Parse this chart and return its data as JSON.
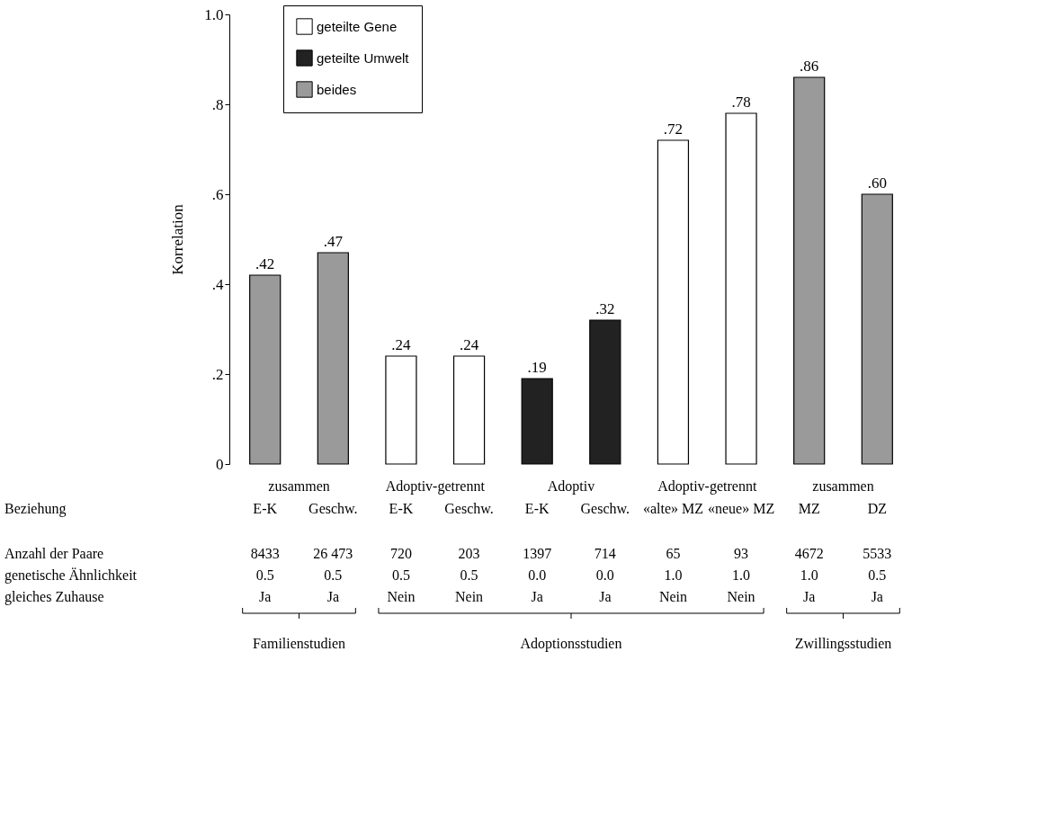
{
  "chart_data": {
    "type": "bar",
    "ylabel": "Korrelation",
    "categories": [
      "E-K",
      "Geschw.",
      "E-K",
      "Geschw.",
      "E-K",
      "Geschw.",
      "«alte» MZ",
      "«neue» MZ",
      "MZ",
      "DZ"
    ],
    "series": [
      {
        "name": "geteilte Gene",
        "color": "#ffffff",
        "values": [
          null,
          null,
          0.24,
          0.24,
          null,
          null,
          0.72,
          0.78,
          null,
          null
        ],
        "value_labels": [
          null,
          null,
          ".24",
          ".24",
          null,
          null,
          ".72",
          ".78",
          null,
          null
        ]
      },
      {
        "name": "geteilte Umwelt",
        "color": "#222222",
        "values": [
          null,
          null,
          null,
          null,
          0.19,
          0.32,
          null,
          null,
          null,
          null
        ],
        "value_labels": [
          null,
          null,
          null,
          null,
          ".19",
          ".32",
          null,
          null,
          null,
          null
        ]
      },
      {
        "name": "beides",
        "color": "#9a9a9a",
        "values": [
          0.42,
          0.47,
          null,
          null,
          null,
          null,
          null,
          null,
          0.86,
          0.6
        ],
        "value_labels": [
          ".42",
          ".47",
          null,
          null,
          null,
          null,
          null,
          null,
          ".86",
          ".60"
        ]
      }
    ],
    "ylim": [
      0,
      1.0
    ],
    "yticks": [
      0,
      {
        "value": 0.2,
        "label": ".2"
      },
      {
        "value": 0.4,
        "label": ".4"
      },
      {
        "value": 0.6,
        "label": ".6"
      },
      {
        "value": 0.8,
        "label": ".8"
      },
      {
        "value": 1.0,
        "label": "1.0"
      }
    ],
    "grid": false,
    "legend": "top left",
    "annotations": [
      "Beziehung",
      "Anzahl der Paare",
      "genetische Ähnlichkeit",
      "gleiches Zuhause",
      "zusammen",
      "Adoptiv-getrennt",
      "Adoptiv",
      "Adoptiv-getrennt",
      "zusammen",
      "8433",
      "26 473",
      "720",
      "203",
      "1397",
      "714",
      "65",
      "93",
      "4672",
      "5533",
      "0.5",
      "0.5",
      "0.5",
      "0.5",
      "0.0",
      "0.0",
      "1.0",
      "1.0",
      "1.0",
      "0.5",
      "Ja",
      "Ja",
      "Nein",
      "Nein",
      "Ja",
      "Ja",
      "Nein",
      "Nein",
      "Ja",
      "Ja",
      "Familienstudien",
      "Adoptionsstudien",
      "Zwillingsstudien"
    ]
  }
}
